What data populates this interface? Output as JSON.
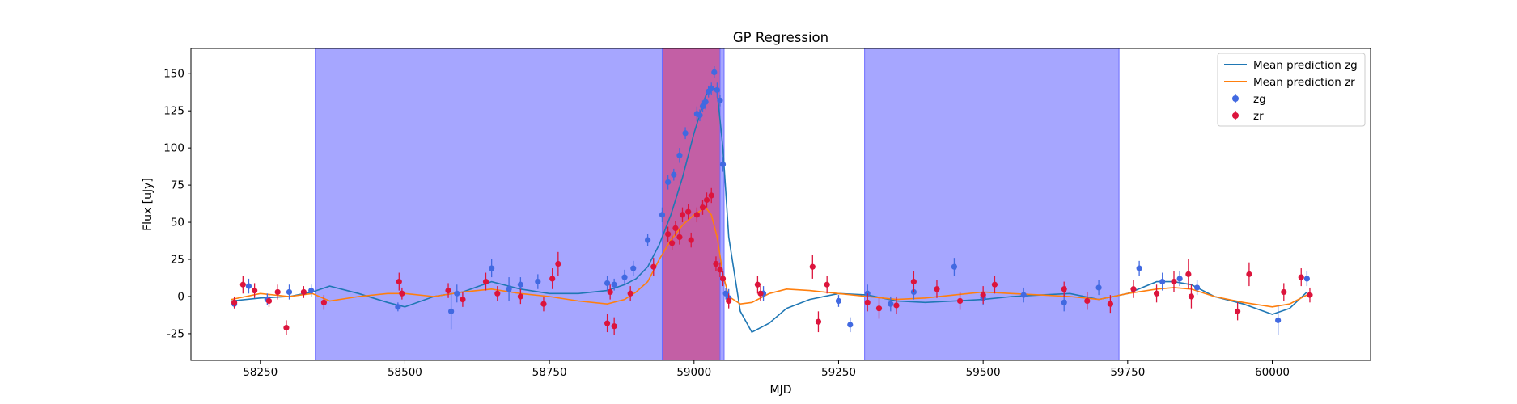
{
  "chart_data": {
    "type": "scatter",
    "title": "GP Regression",
    "xlabel": "MJD",
    "ylabel": "Flux [uJy]",
    "xlim": [
      58130,
      60170
    ],
    "ylim": [
      -43,
      167
    ],
    "xticks": [
      58250,
      58500,
      58750,
      59000,
      59250,
      59500,
      59750,
      60000
    ],
    "yticks": [
      -25,
      0,
      25,
      50,
      75,
      100,
      125,
      150
    ],
    "grid": false,
    "legend_placement": "top-right",
    "shaded_regions": [
      {
        "x": [
          58345,
          59052
        ],
        "color": "#a6a6ff"
      },
      {
        "x": [
          59295,
          59735
        ],
        "color": "#a6a6ff"
      },
      {
        "x": [
          58945,
          59045
        ],
        "color": "#c35fa5"
      }
    ],
    "series": [
      {
        "name": "Mean prediction zg",
        "kind": "line",
        "color": "#1f77b4",
        "x": [
          58200,
          58250,
          58300,
          58340,
          58370,
          58420,
          58470,
          58500,
          58550,
          58600,
          58650,
          58700,
          58750,
          58800,
          58850,
          58880,
          58900,
          58920,
          58940,
          58960,
          58980,
          59000,
          59020,
          59030,
          59040,
          59050,
          59060,
          59080,
          59100,
          59130,
          59160,
          59200,
          59250,
          59300,
          59350,
          59400,
          59450,
          59500,
          59550,
          59600,
          59650,
          59700,
          59750,
          59800,
          59830,
          59860,
          59900,
          59950,
          60000,
          60030,
          60060
        ],
        "y": [
          -3,
          -1,
          0,
          3,
          7,
          2,
          -4,
          -7,
          0,
          3,
          10,
          5,
          2,
          2,
          4,
          8,
          12,
          20,
          35,
          55,
          80,
          110,
          135,
          142,
          138,
          100,
          40,
          -10,
          -24,
          -18,
          -8,
          -2,
          2,
          1,
          -3,
          -4,
          -3,
          -2,
          0,
          1,
          2,
          -2,
          2,
          10,
          10,
          8,
          0,
          -5,
          -12,
          -8,
          3
        ]
      },
      {
        "name": "Mean prediction zr",
        "kind": "line",
        "color": "#ff7f0e",
        "x": [
          58200,
          58250,
          58300,
          58340,
          58370,
          58420,
          58470,
          58500,
          58550,
          58600,
          58650,
          58700,
          58750,
          58800,
          58850,
          58880,
          58900,
          58920,
          58940,
          58960,
          58980,
          59000,
          59020,
          59030,
          59040,
          59050,
          59060,
          59080,
          59100,
          59130,
          59160,
          59200,
          59250,
          59300,
          59350,
          59400,
          59450,
          59500,
          59550,
          59600,
          59650,
          59700,
          59750,
          59800,
          59830,
          59860,
          59900,
          59950,
          60000,
          60030,
          60060
        ],
        "y": [
          -2,
          2,
          0,
          2,
          -3,
          0,
          2,
          2,
          0,
          3,
          5,
          2,
          0,
          -3,
          -5,
          -2,
          3,
          10,
          25,
          38,
          48,
          55,
          60,
          55,
          40,
          15,
          0,
          -5,
          -4,
          2,
          5,
          4,
          2,
          0,
          -2,
          -1,
          1,
          3,
          2,
          1,
          0,
          -2,
          2,
          5,
          6,
          5,
          0,
          -4,
          -7,
          -5,
          1
        ]
      },
      {
        "name": "zg",
        "kind": "errorbar",
        "color": "#4169e1",
        "x": [
          58205,
          58230,
          58262,
          58300,
          58338,
          58488,
          58580,
          58590,
          58650,
          58680,
          58700,
          58730,
          58850,
          58862,
          58880,
          58895,
          58920,
          58945,
          58955,
          58965,
          58975,
          58985,
          59005,
          59010,
          59015,
          59020,
          59025,
          59030,
          59035,
          59040,
          59045,
          59050,
          59055,
          59060,
          59120,
          59250,
          59270,
          59300,
          59340,
          59380,
          59450,
          59500,
          59570,
          59640,
          59700,
          59770,
          59810,
          59840,
          59870,
          60010,
          60060
        ],
        "y": [
          -5,
          7,
          -2,
          3,
          4,
          -7,
          -10,
          2,
          19,
          5,
          8,
          10,
          9,
          8,
          13,
          19,
          38,
          55,
          77,
          82,
          95,
          110,
          123,
          122,
          128,
          131,
          138,
          140,
          151,
          139,
          132,
          89,
          2,
          -1,
          2,
          -3,
          -19,
          2,
          -5,
          3,
          20,
          -1,
          1,
          -4,
          6,
          19,
          10,
          12,
          6,
          -16,
          12
        ],
        "err": [
          3,
          5,
          4,
          5,
          4,
          3,
          12,
          6,
          6,
          8,
          5,
          5,
          5,
          4,
          5,
          5,
          4,
          5,
          5,
          4,
          5,
          4,
          5,
          4,
          4,
          5,
          4,
          4,
          4,
          5,
          4,
          5,
          4,
          6,
          5,
          4,
          5,
          6,
          5,
          5,
          6,
          5,
          5,
          6,
          5,
          5,
          6,
          5,
          5,
          10,
          5
        ]
      },
      {
        "name": "zr",
        "kind": "errorbar",
        "color": "#dc143c",
        "x": [
          58205,
          58220,
          58240,
          58265,
          58280,
          58295,
          58325,
          58360,
          58490,
          58495,
          58575,
          58600,
          58640,
          58660,
          58700,
          58740,
          58755,
          58765,
          58850,
          58855,
          58862,
          58890,
          58930,
          58955,
          58962,
          58968,
          58975,
          58980,
          58990,
          58995,
          59005,
          59015,
          59022,
          59030,
          59038,
          59045,
          59050,
          59060,
          59110,
          59115,
          59205,
          59215,
          59230,
          59300,
          59320,
          59350,
          59380,
          59420,
          59460,
          59500,
          59520,
          59640,
          59680,
          59720,
          59760,
          59800,
          59830,
          59855,
          59860,
          59940,
          59960,
          60020,
          60050,
          60065
        ],
        "y": [
          -4,
          8,
          4,
          -3,
          3,
          -21,
          3,
          -4,
          10,
          2,
          4,
          -2,
          10,
          2,
          0,
          -5,
          12,
          22,
          -18,
          3,
          -20,
          2,
          20,
          42,
          36,
          46,
          40,
          55,
          57,
          38,
          55,
          60,
          65,
          68,
          22,
          18,
          12,
          -3,
          8,
          2,
          20,
          -17,
          8,
          -4,
          -8,
          -6,
          10,
          5,
          -3,
          1,
          8,
          5,
          -3,
          -5,
          5,
          2,
          10,
          15,
          0,
          -10,
          15,
          3,
          13,
          1
        ],
        "err": [
          4,
          6,
          5,
          4,
          5,
          5,
          4,
          5,
          6,
          4,
          5,
          5,
          6,
          5,
          5,
          5,
          7,
          8,
          6,
          5,
          6,
          5,
          6,
          5,
          5,
          5,
          5,
          5,
          5,
          5,
          5,
          5,
          5,
          5,
          5,
          5,
          5,
          5,
          6,
          5,
          8,
          7,
          6,
          6,
          7,
          6,
          7,
          6,
          6,
          6,
          6,
          5,
          6,
          6,
          6,
          6,
          7,
          10,
          8,
          6,
          8,
          6,
          6,
          5
        ]
      }
    ]
  }
}
